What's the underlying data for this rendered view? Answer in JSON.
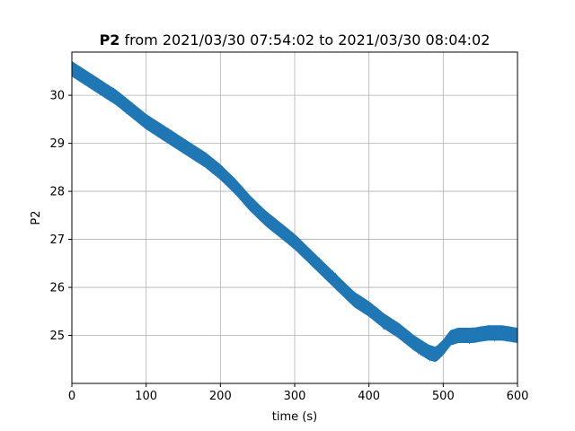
{
  "chart_data": {
    "type": "line",
    "title_bold": "P2",
    "title_rest": " from 2021/03/30 07:54:02 to 2021/03/30 08:04:02",
    "xlabel": "time (s)",
    "ylabel": "P2",
    "xlim": [
      0,
      600
    ],
    "ylim": [
      24.0,
      30.9
    ],
    "xticks": [
      0,
      100,
      200,
      300,
      400,
      500,
      600
    ],
    "yticks": [
      25,
      26,
      27,
      28,
      29,
      30
    ],
    "grid": true,
    "legend": "none",
    "series": [
      {
        "color": "#1f77b4",
        "band_width": 0.3,
        "x": [
          0,
          20,
          40,
          60,
          80,
          100,
          120,
          140,
          160,
          180,
          200,
          220,
          240,
          260,
          280,
          300,
          320,
          340,
          360,
          380,
          400,
          420,
          440,
          460,
          480,
          490,
          500,
          510,
          520,
          540,
          560,
          580,
          600
        ],
        "y": [
          30.55,
          30.35,
          30.15,
          29.95,
          29.7,
          29.45,
          29.25,
          29.05,
          28.85,
          28.65,
          28.4,
          28.1,
          27.75,
          27.45,
          27.2,
          26.95,
          26.65,
          26.35,
          26.05,
          25.75,
          25.55,
          25.3,
          25.1,
          24.85,
          24.65,
          24.6,
          24.75,
          24.95,
          25.0,
          25.0,
          25.05,
          25.05,
          25.0
        ]
      }
    ]
  }
}
